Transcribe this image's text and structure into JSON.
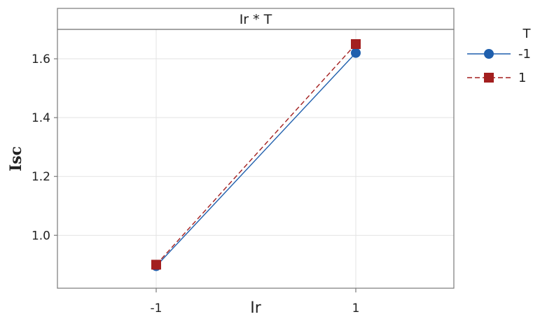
{
  "chart_data": {
    "type": "line",
    "panel_title": "Ir * T",
    "xlabel": "Ir",
    "ylabel": "Isc",
    "categories": [
      "-1",
      "1"
    ],
    "ylim": [
      0.82,
      1.7
    ],
    "yticks": [
      "1.0",
      "1.2",
      "1.4",
      "1.6"
    ],
    "grid": true,
    "legend": {
      "title": "T",
      "placement": "right"
    },
    "series": [
      {
        "name": "-1",
        "values": [
          0.895,
          1.62
        ],
        "color": "#1f5fad",
        "marker": "circle",
        "line": "solid"
      },
      {
        "name": "1",
        "values": [
          0.9,
          1.65
        ],
        "color": "#a31f1f",
        "marker": "square",
        "line": "dashed"
      }
    ]
  }
}
